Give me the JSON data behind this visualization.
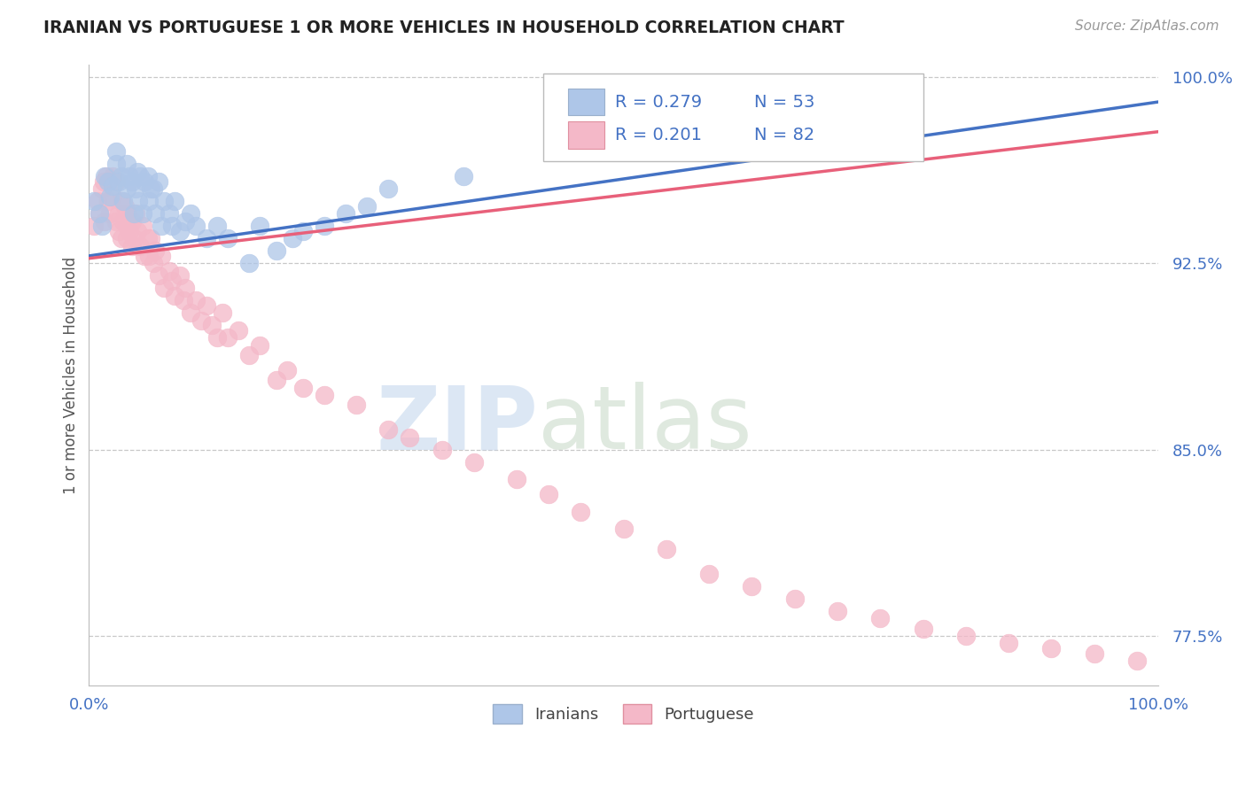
{
  "title": "IRANIAN VS PORTUGUESE 1 OR MORE VEHICLES IN HOUSEHOLD CORRELATION CHART",
  "source": "Source: ZipAtlas.com",
  "ylabel": "1 or more Vehicles in Household",
  "xlim": [
    0,
    1
  ],
  "ylim": [
    0.755,
    1.005
  ],
  "yticks": [
    0.775,
    0.85,
    0.925,
    1.0
  ],
  "ytick_labels": [
    "77.5%",
    "85.0%",
    "92.5%",
    "100.0%"
  ],
  "background_color": "#ffffff",
  "grid_color": "#c8c8c8",
  "watermark_zip": "ZIP",
  "watermark_atlas": "atlas",
  "legend_R_iranian": "R = 0.279",
  "legend_N_iranian": "N = 53",
  "legend_R_portuguese": "R = 0.201",
  "legend_N_portuguese": "N = 82",
  "iranian_color": "#aec6e8",
  "portuguese_color": "#f4b8c8",
  "iranian_line_color": "#4472c4",
  "portuguese_line_color": "#e8607a",
  "iranian_scatter_x": [
    0.005,
    0.01,
    0.012,
    0.015,
    0.018,
    0.02,
    0.022,
    0.025,
    0.025,
    0.028,
    0.03,
    0.032,
    0.035,
    0.035,
    0.038,
    0.04,
    0.042,
    0.044,
    0.045,
    0.046,
    0.048,
    0.05,
    0.052,
    0.055,
    0.056,
    0.058,
    0.06,
    0.062,
    0.065,
    0.068,
    0.07,
    0.075,
    0.078,
    0.08,
    0.085,
    0.09,
    0.095,
    0.1,
    0.11,
    0.12,
    0.13,
    0.15,
    0.16,
    0.175,
    0.19,
    0.2,
    0.22,
    0.24,
    0.26,
    0.28,
    0.35,
    0.5,
    0.68
  ],
  "iranian_scatter_y": [
    0.95,
    0.945,
    0.94,
    0.96,
    0.958,
    0.952,
    0.956,
    0.965,
    0.97,
    0.958,
    0.96,
    0.95,
    0.955,
    0.965,
    0.96,
    0.958,
    0.945,
    0.955,
    0.962,
    0.95,
    0.96,
    0.945,
    0.958,
    0.96,
    0.95,
    0.955,
    0.955,
    0.945,
    0.958,
    0.94,
    0.95,
    0.945,
    0.94,
    0.95,
    0.938,
    0.942,
    0.945,
    0.94,
    0.935,
    0.94,
    0.935,
    0.925,
    0.94,
    0.93,
    0.935,
    0.938,
    0.94,
    0.945,
    0.948,
    0.955,
    0.96,
    0.97,
    0.985
  ],
  "portuguese_scatter_x": [
    0.005,
    0.008,
    0.01,
    0.012,
    0.014,
    0.015,
    0.016,
    0.018,
    0.018,
    0.02,
    0.022,
    0.022,
    0.025,
    0.025,
    0.028,
    0.028,
    0.03,
    0.03,
    0.032,
    0.034,
    0.035,
    0.035,
    0.036,
    0.038,
    0.04,
    0.04,
    0.042,
    0.044,
    0.045,
    0.048,
    0.05,
    0.052,
    0.055,
    0.056,
    0.058,
    0.06,
    0.062,
    0.065,
    0.068,
    0.07,
    0.075,
    0.078,
    0.08,
    0.085,
    0.088,
    0.09,
    0.095,
    0.1,
    0.105,
    0.11,
    0.115,
    0.12,
    0.125,
    0.13,
    0.14,
    0.15,
    0.16,
    0.175,
    0.185,
    0.2,
    0.22,
    0.25,
    0.28,
    0.3,
    0.33,
    0.36,
    0.4,
    0.43,
    0.46,
    0.5,
    0.54,
    0.58,
    0.62,
    0.66,
    0.7,
    0.74,
    0.78,
    0.82,
    0.86,
    0.9,
    0.94,
    0.98
  ],
  "portuguese_scatter_y": [
    0.94,
    0.95,
    0.945,
    0.955,
    0.958,
    0.942,
    0.96,
    0.95,
    0.958,
    0.945,
    0.952,
    0.96,
    0.942,
    0.958,
    0.945,
    0.938,
    0.95,
    0.935,
    0.942,
    0.948,
    0.94,
    0.935,
    0.945,
    0.938,
    0.932,
    0.942,
    0.935,
    0.945,
    0.938,
    0.932,
    0.94,
    0.928,
    0.935,
    0.928,
    0.935,
    0.925,
    0.93,
    0.92,
    0.928,
    0.915,
    0.922,
    0.918,
    0.912,
    0.92,
    0.91,
    0.915,
    0.905,
    0.91,
    0.902,
    0.908,
    0.9,
    0.895,
    0.905,
    0.895,
    0.898,
    0.888,
    0.892,
    0.878,
    0.882,
    0.875,
    0.872,
    0.868,
    0.858,
    0.855,
    0.85,
    0.845,
    0.838,
    0.832,
    0.825,
    0.818,
    0.81,
    0.8,
    0.795,
    0.79,
    0.785,
    0.782,
    0.778,
    0.775,
    0.772,
    0.77,
    0.768,
    0.765
  ]
}
